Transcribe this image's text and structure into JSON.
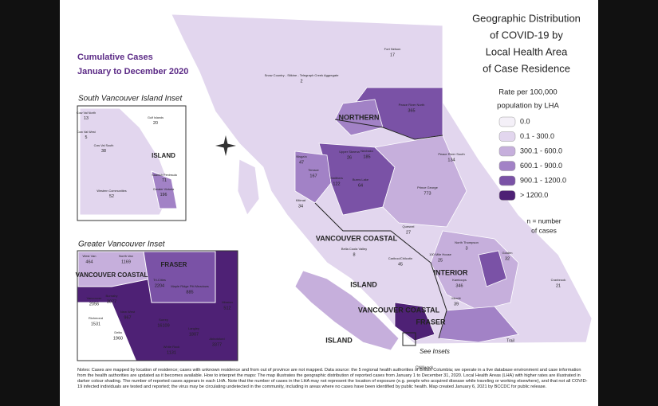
{
  "title_lines": [
    "Geographic Distribution",
    "of COVID-19 by",
    "Local Health Area",
    "of Case Residence"
  ],
  "subtitle_lines": [
    "Cumulative Cases",
    "January to December 2020"
  ],
  "legend": {
    "title_lines": [
      "Rate per 100,000",
      "population by LHA"
    ],
    "items": [
      {
        "label": "0.0",
        "color": "#f4f0f8"
      },
      {
        "label": "0.1 - 300.0",
        "color": "#e2d6ee"
      },
      {
        "label": "300.1 - 600.0",
        "color": "#c6afdc"
      },
      {
        "label": "600.1 - 900.0",
        "color": "#a282c6"
      },
      {
        "label": "900.1 - 1200.0",
        "color": "#7a52a6"
      },
      {
        "label": "> 1200.0",
        "color": "#4e2175"
      }
    ],
    "note_lines": [
      "n = number",
      "of cases"
    ]
  },
  "insets": [
    "South Vancouver Island Inset",
    "Greater Vancouver Inset"
  ],
  "region_labels": [
    "NORTHERN",
    "INTERIOR",
    "VANCOUVER COASTAL",
    "ISLAND",
    "ISLAND",
    "FRASER",
    "VANCOUVER COASTAL",
    "FRASER",
    "ISLAND",
    "VANCOUVER COASTAL"
  ],
  "map_labels": [
    {
      "name": "Fort Nelson",
      "cases": 17
    },
    {
      "name": "Snow Country - Stikine - Telegraph Creek Aggregate",
      "cases": 2
    },
    {
      "name": "Peace River North",
      "cases": 365
    },
    {
      "name": "Peace River South",
      "cases": 134
    },
    {
      "name": "Nechako",
      "cases": 185
    },
    {
      "name": "Prince George",
      "cases": 773
    },
    {
      "name": "Burns Lake",
      "cases": 64
    },
    {
      "name": "Smithers",
      "cases": 122
    },
    {
      "name": "Terrace",
      "cases": 167
    },
    {
      "name": "Nisga'a",
      "cases": 47
    },
    {
      "name": "Upper Skeena",
      "cases": 26
    },
    {
      "name": "Kitimat",
      "cases": 34
    },
    {
      "name": "Quesnel",
      "cases": 27
    },
    {
      "name": "Bella Coola Valley",
      "cases": 8
    },
    {
      "name": "Cariboo/Chilcotin",
      "cases": 45
    },
    {
      "name": "100 Mile House",
      "cases": 25
    },
    {
      "name": "North Thompson",
      "cases": 3
    },
    {
      "name": "Golden",
      "cases": 32
    },
    {
      "name": "Kamloops",
      "cases": 346
    },
    {
      "name": "Merritt",
      "cases": 39
    },
    {
      "name": "Cranbrook",
      "cases": 21
    }
  ],
  "svi_labels": [
    {
      "name": "Cow Val North",
      "cases": 13
    },
    {
      "name": "Cow Val West",
      "cases": 5
    },
    {
      "name": "Cow Val South",
      "cases": 38
    },
    {
      "name": "Gulf Islands",
      "cases": 20
    },
    {
      "name": "Saanich Peninsula",
      "cases": 71
    },
    {
      "name": "Western Communities",
      "cases": 52
    },
    {
      "name": "Greater Victoria",
      "cases": 196
    }
  ],
  "gv_labels": [
    {
      "name": "West Van",
      "cases": 464
    },
    {
      "name": "North Van",
      "cases": 1169
    },
    {
      "name": "Tri-Cities",
      "cases": 2204
    },
    {
      "name": "Maple Ridge Pitt Meadows",
      "cases": 885
    },
    {
      "name": "Mission",
      "cases": 512
    },
    {
      "name": "Burnaby",
      "cases": 3077
    },
    {
      "name": "Vancouver",
      "cases": 2056
    },
    {
      "name": "New West",
      "cases": 967
    },
    {
      "name": "Richmond",
      "cases": 1531
    },
    {
      "name": "Surrey",
      "cases": 16109
    },
    {
      "name": "Langley",
      "cases": 1807
    },
    {
      "name": "Abbotsford",
      "cases": 3377
    },
    {
      "name": "Delta",
      "cases": 1960
    },
    {
      "name": "White Rock",
      "cases": 1131
    }
  ],
  "place_labels": [
    "Chilliwack",
    "Trail",
    "See Insets"
  ],
  "notes": "Notes: Cases are mapped by location of residence; cases with unknown residence and from out of province are not mapped. Data source: the 5 regional health authorities of British Columbia; we operate in a live database environment and case information from the health authorities are updated as it becomes available. How to interpret the maps: The map illustrates the geographic distribution of reported cases from January 1 to December 31, 2020. Local Health Areas (LHA) with higher rates are illustrated in darker colour shading. The number of reported cases appears in each LHA. Note that the number of cases in the LHA may not represent the location of exposure (e.g. people who acquired disease while traveling or working elsewhere), and that not all COVID-19 infected individuals are tested and reported; the virus may be circulating undetected in the community, including in areas where no cases have been identified by public health. Map created January 6, 2021 by BCCDC for public release."
}
